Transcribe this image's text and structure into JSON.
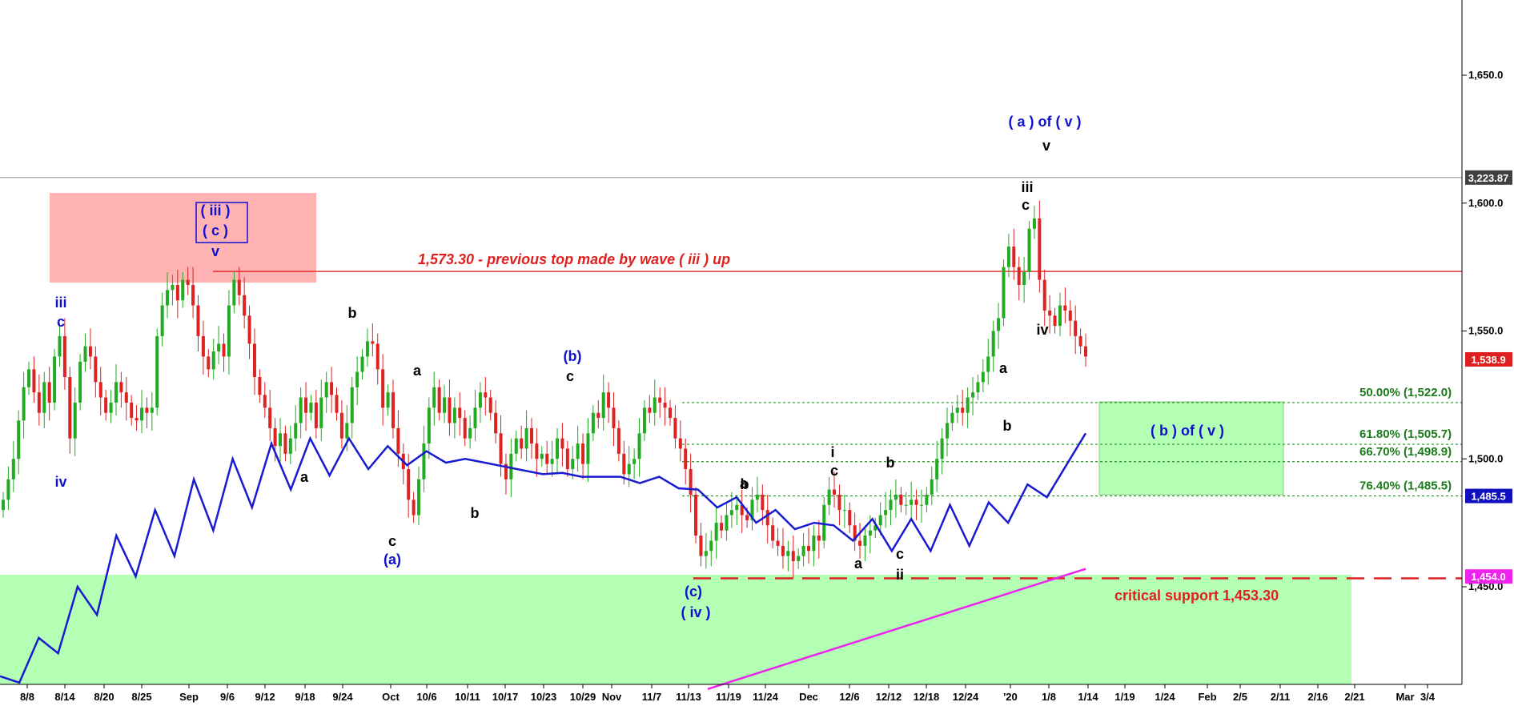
{
  "chart_data": {
    "type": "candlestick",
    "y_axis": {
      "ticks": [
        "1,650.0",
        "1,600.0",
        "1,550.0",
        "1,500.0",
        "1,450.0"
      ],
      "tick_values": [
        1650,
        1600,
        1550,
        1500,
        1450
      ],
      "range": [
        1410,
        1680
      ]
    },
    "x_axis": {
      "ticks": [
        "8/8",
        "8/14",
        "8/20",
        "8/25",
        "Sep",
        "9/6",
        "9/12",
        "9/18",
        "9/24",
        "Oct",
        "10/6",
        "10/11",
        "10/17",
        "10/23",
        "10/29",
        "Nov",
        "11/7",
        "11/13",
        "11/19",
        "11/24",
        "Dec",
        "12/6",
        "12/12",
        "12/18",
        "12/24",
        "'20",
        "1/8",
        "1/14",
        "1/19",
        "1/24",
        "Feb",
        "2/5",
        "2/11",
        "2/16",
        "2/21",
        "Mar",
        "3/4"
      ]
    },
    "price_badges": [
      {
        "label": "3,223.87",
        "value": 1610,
        "color": "#404040"
      },
      {
        "label": "1,538.9",
        "value": 1538.9,
        "color": "#e02020"
      },
      {
        "label": "1,485.5",
        "value": 1485.5,
        "color": "#1010c0"
      },
      {
        "label": "1,454.0",
        "value": 1454.0,
        "color": "#ee22ee"
      }
    ],
    "fib_levels": [
      {
        "label": "50.00% (1,522.0)",
        "value": 1522.0
      },
      {
        "label": "61.80% (1,505.7)",
        "value": 1505.7
      },
      {
        "label": "66.70% (1,498.9)",
        "value": 1498.9
      },
      {
        "label": "76.40% (1,485.5)",
        "value": 1485.5
      }
    ],
    "resistance": {
      "label": "1,573.30 - previous top made by wave ( iii ) up",
      "value": 1573.3
    },
    "support": {
      "label": "critical support 1,453.30",
      "value": 1453.3
    },
    "box_label": "( b ) of ( v )",
    "wave_labels": {
      "blue": [
        "iii",
        "c",
        "iv",
        "( iii )",
        "( c )",
        "v",
        "(a)",
        "(b)",
        "(c)",
        "( iv )",
        "( a ) of ( v )"
      ],
      "black": [
        "b",
        "a",
        "c",
        "a",
        "b",
        "c",
        "a",
        "b",
        "i",
        "c",
        "b",
        "a",
        "c",
        "ii",
        "a",
        "b",
        "iii",
        "c",
        "v",
        "iv"
      ]
    },
    "candles_close": [
      1484,
      1492,
      1500,
      1515,
      1528,
      1535,
      1526,
      1518,
      1530,
      1522,
      1540,
      1548,
      1532,
      1508,
      1522,
      1538,
      1544,
      1540,
      1530,
      1524,
      1518,
      1522,
      1530,
      1526,
      1522,
      1516,
      1515,
      1520,
      1518,
      1520,
      1548,
      1560,
      1566,
      1568,
      1562,
      1570,
      1568,
      1560,
      1548,
      1540,
      1535,
      1542,
      1545,
      1540,
      1560,
      1570,
      1564,
      1556,
      1545,
      1532,
      1525,
      1520,
      1512,
      1505,
      1510,
      1502,
      1508,
      1514,
      1524,
      1518,
      1522,
      1512,
      1524,
      1530,
      1525,
      1518,
      1508,
      1514,
      1528,
      1534,
      1540,
      1546,
      1545,
      1535,
      1520,
      1526,
      1512,
      1502,
      1496,
      1484,
      1478,
      1492,
      1506,
      1520,
      1528,
      1518,
      1524,
      1514,
      1520,
      1516,
      1508,
      1512,
      1520,
      1526,
      1524,
      1518,
      1510,
      1498,
      1492,
      1502,
      1508,
      1504,
      1512,
      1506,
      1500,
      1502,
      1498,
      1500,
      1508,
      1504,
      1496,
      1500,
      1506,
      1498,
      1510,
      1518,
      1516,
      1526,
      1520,
      1512,
      1502,
      1494,
      1498,
      1500,
      1510,
      1520,
      1518,
      1524,
      1522,
      1520,
      1516,
      1508,
      1504,
      1496,
      1486,
      1470,
      1462,
      1464,
      1468,
      1475,
      1472,
      1478,
      1480,
      1482,
      1478,
      1476,
      1484,
      1486,
      1480,
      1474,
      1468,
      1466,
      1462,
      1464,
      1460,
      1462,
      1466,
      1464,
      1470,
      1468,
      1482,
      1488,
      1486,
      1480,
      1480,
      1474,
      1468,
      1466,
      1470,
      1472,
      1474,
      1478,
      1480,
      1484,
      1486,
      1482,
      1482,
      1484,
      1482,
      1482,
      1486,
      1492,
      1500,
      1508,
      1514,
      1518,
      1520,
      1518,
      1524,
      1526,
      1530,
      1534,
      1540,
      1550,
      1555,
      1575,
      1583,
      1575,
      1568,
      1573,
      1590,
      1594,
      1570,
      1558,
      1556,
      1552,
      1560,
      1558,
      1554,
      1548,
      1544,
      1540
    ],
    "moving_average_blue": [
      [
        1415,
        1410
      ],
      [
        1430,
        1418
      ],
      [
        1450,
        1428
      ],
      [
        1470,
        1438
      ],
      [
        1480,
        1444
      ],
      [
        1492,
        1452
      ],
      [
        1500,
        1462
      ],
      [
        1506,
        1470
      ],
      [
        1508,
        1479
      ],
      [
        1508,
        1484
      ],
      [
        1505,
        1490
      ],
      [
        1503,
        1494
      ],
      [
        1500,
        1497
      ],
      [
        1497,
        1494
      ],
      [
        1494,
        1495
      ],
      [
        1493,
        1493
      ],
      [
        1493,
        1488
      ],
      [
        1493,
        1484
      ],
      [
        1488,
        1474
      ],
      [
        1485,
        1465
      ],
      [
        1480,
        1465
      ],
      [
        1475,
        1473
      ],
      [
        1468,
        1485
      ],
      [
        1464,
        1489
      ],
      [
        1464,
        1500
      ],
      [
        1466,
        1500
      ],
      [
        1475,
        1505
      ],
      [
        1485,
        1510
      ]
    ],
    "moving_average_magenta": [
      [
        1410,
        1457
      ]
    ]
  }
}
